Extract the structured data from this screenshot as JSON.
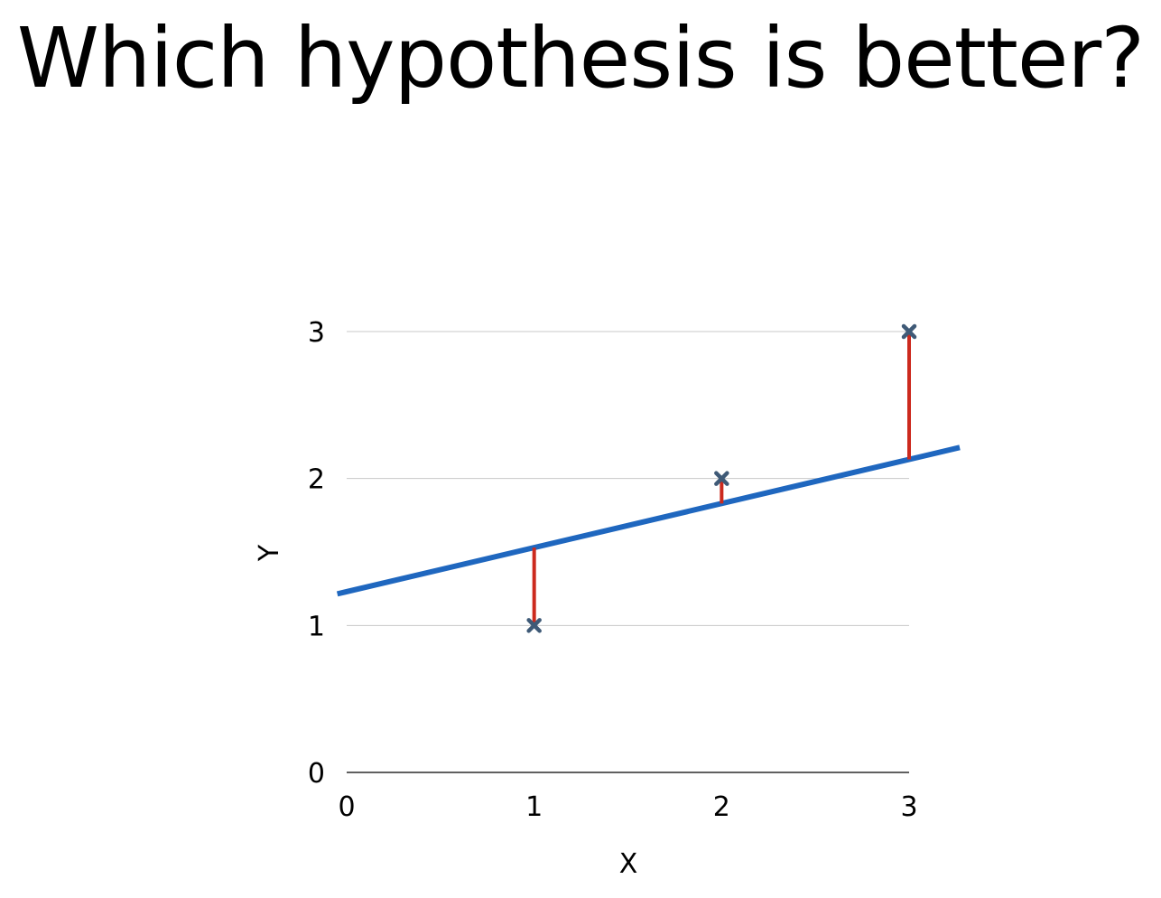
{
  "slide": {
    "title": "Which hypothesis is better?"
  },
  "colors": {
    "fit_line": "#1f67bf",
    "residual": "#cc2a1e",
    "marker": "#3f5a77",
    "gridline": "#c8c8c8",
    "axis": "#000000"
  },
  "chart_data": {
    "type": "scatter",
    "title": "",
    "xlabel": "X",
    "ylabel": "Y",
    "xlim": [
      0,
      3
    ],
    "ylim": [
      0,
      3
    ],
    "x_ticks": [
      0,
      1,
      2,
      3
    ],
    "y_ticks": [
      0,
      1,
      2,
      3
    ],
    "grid": "horizontal",
    "points": [
      {
        "x": 1,
        "y": 1
      },
      {
        "x": 2,
        "y": 2
      },
      {
        "x": 3,
        "y": 3
      }
    ],
    "fit_line": {
      "intercept": 1.23,
      "slope": 0.3,
      "x_range": [
        -0.05,
        3.27
      ]
    },
    "residuals": [
      {
        "x": 1,
        "y_from": 1,
        "y_to": 1.53
      },
      {
        "x": 2,
        "y_from": 2,
        "y_to": 1.83
      },
      {
        "x": 3,
        "y_from": 3,
        "y_to": 2.13
      }
    ]
  }
}
